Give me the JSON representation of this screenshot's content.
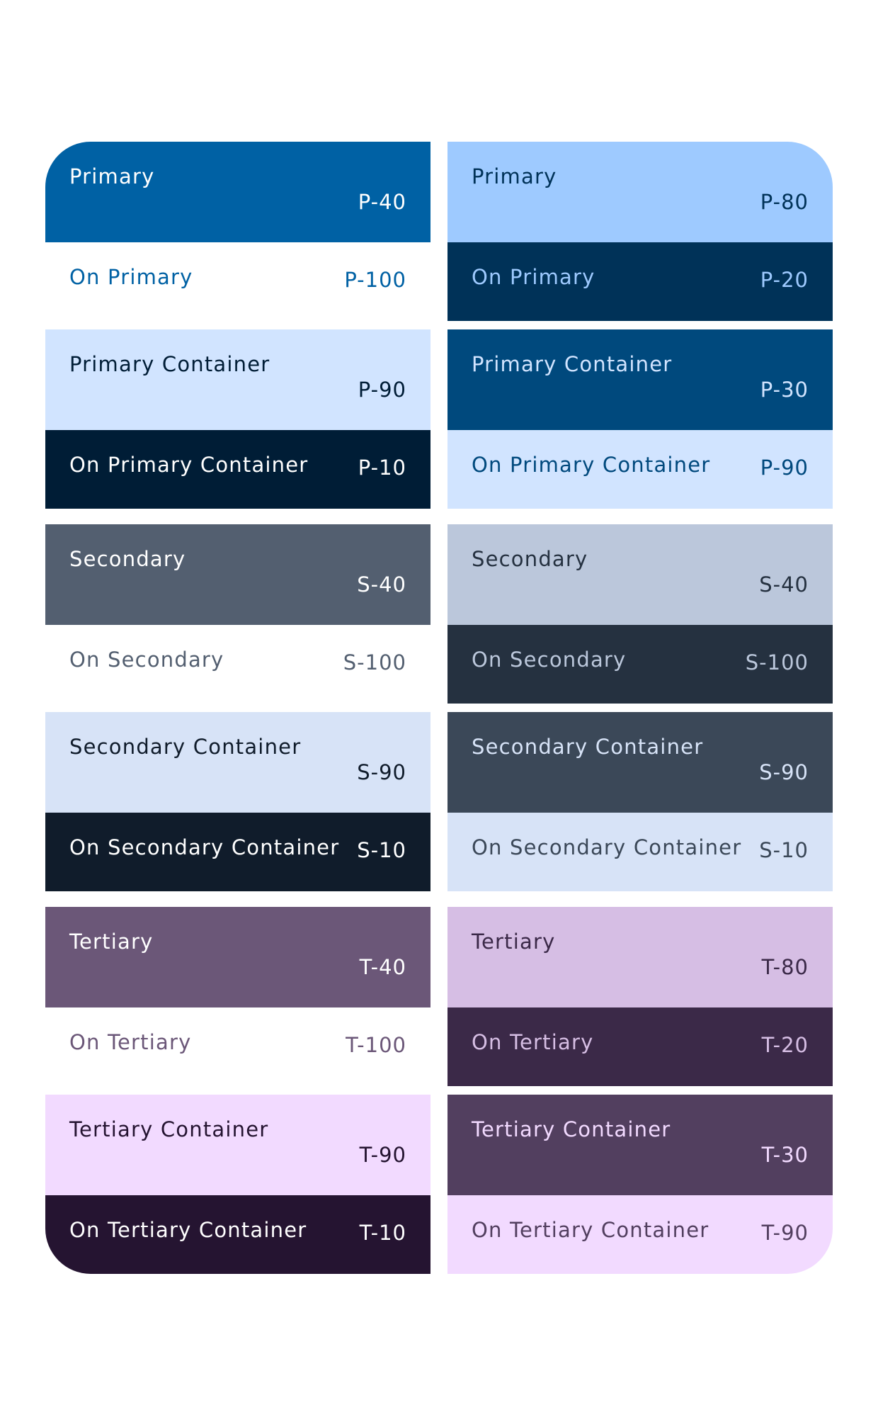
{
  "light": [
    {
      "group": "primary",
      "kind": "role",
      "label": "Primary",
      "tone": "P-40",
      "bg": "#0061A4",
      "fg": "#FFFFFF"
    },
    {
      "group": "primary",
      "kind": "on",
      "label": "On Primary",
      "tone": "P-100",
      "bg": "#FFFFFF",
      "fg": "#0061A4"
    },
    {
      "group": "primary",
      "kind": "role",
      "label": "Primary Container",
      "tone": "P-90",
      "bg": "#D1E4FF",
      "fg": "#001D36"
    },
    {
      "group": "primary",
      "kind": "on",
      "label": "On Primary Container",
      "tone": "P-10",
      "bg": "#001D36",
      "fg": "#FFFFFF"
    },
    {
      "group": "secondary",
      "kind": "role",
      "label": "Secondary",
      "tone": "S-40",
      "bg": "#535F70",
      "fg": "#FFFFFF"
    },
    {
      "group": "secondary",
      "kind": "on",
      "label": "On Secondary",
      "tone": "S-100",
      "bg": "#FFFFFF",
      "fg": "#535F70"
    },
    {
      "group": "secondary",
      "kind": "role",
      "label": "Secondary Container",
      "tone": "S-90",
      "bg": "#D7E3F7",
      "fg": "#101C2B"
    },
    {
      "group": "secondary",
      "kind": "on",
      "label": "On Secondary Container",
      "tone": "S-10",
      "bg": "#101C2B",
      "fg": "#FFFFFF"
    },
    {
      "group": "tertiary",
      "kind": "role",
      "label": "Tertiary",
      "tone": "T-40",
      "bg": "#6B5778",
      "fg": "#FFFFFF"
    },
    {
      "group": "tertiary",
      "kind": "on",
      "label": "On Tertiary",
      "tone": "T-100",
      "bg": "#FFFFFF",
      "fg": "#6B5778"
    },
    {
      "group": "tertiary",
      "kind": "role",
      "label": "Tertiary Container",
      "tone": "T-90",
      "bg": "#F2DAFF",
      "fg": "#251431"
    },
    {
      "group": "tertiary",
      "kind": "on",
      "label": "On Tertiary Container",
      "tone": "T-10",
      "bg": "#251431",
      "fg": "#FFFFFF"
    }
  ],
  "dark": [
    {
      "group": "primary",
      "kind": "role",
      "label": "Primary",
      "tone": "P-80",
      "bg": "#9ECAFF",
      "fg": "#003258"
    },
    {
      "group": "primary",
      "kind": "on",
      "label": "On Primary",
      "tone": "P-20",
      "bg": "#003258",
      "fg": "#9ECAFF"
    },
    {
      "group": "primary",
      "kind": "role",
      "label": "Primary Container",
      "tone": "P-30",
      "bg": "#00497D",
      "fg": "#D1E4FF"
    },
    {
      "group": "primary",
      "kind": "on",
      "label": "On Primary Container",
      "tone": "P-90",
      "bg": "#D1E4FF",
      "fg": "#00497D"
    },
    {
      "group": "secondary",
      "kind": "role",
      "label": "Secondary",
      "tone": "S-40",
      "bg": "#BBC7DB",
      "fg": "#253140"
    },
    {
      "group": "secondary",
      "kind": "on",
      "label": "On Secondary",
      "tone": "S-100",
      "bg": "#253140",
      "fg": "#BBC7DB"
    },
    {
      "group": "secondary",
      "kind": "role",
      "label": "Secondary Container",
      "tone": "S-90",
      "bg": "#3B4858",
      "fg": "#D7E3F7"
    },
    {
      "group": "secondary",
      "kind": "on",
      "label": "On Secondary Container",
      "tone": "S-10",
      "bg": "#D7E3F7",
      "fg": "#3B4858"
    },
    {
      "group": "tertiary",
      "kind": "role",
      "label": "Tertiary",
      "tone": "T-80",
      "bg": "#D6BEE4",
      "fg": "#3B2948"
    },
    {
      "group": "tertiary",
      "kind": "on",
      "label": "On Tertiary",
      "tone": "T-20",
      "bg": "#3B2948",
      "fg": "#D6BEE4"
    },
    {
      "group": "tertiary",
      "kind": "role",
      "label": "Tertiary Container",
      "tone": "T-30",
      "bg": "#523F5F",
      "fg": "#F2DAFF"
    },
    {
      "group": "tertiary",
      "kind": "on",
      "label": "On Tertiary Container",
      "tone": "T-90",
      "bg": "#F2DAFF",
      "fg": "#523F5F"
    }
  ]
}
